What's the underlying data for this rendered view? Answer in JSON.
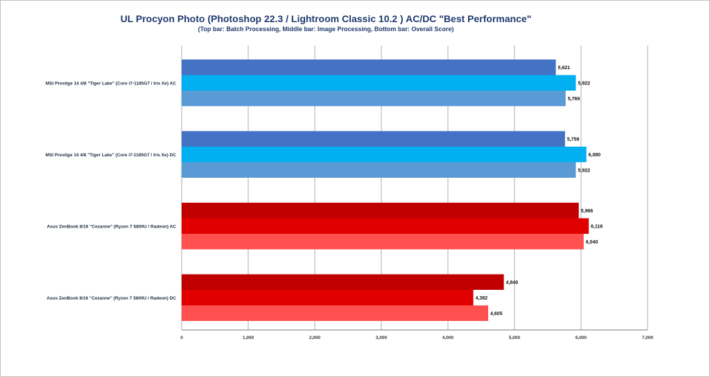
{
  "chart_data": {
    "type": "bar",
    "orientation": "horizontal",
    "title": "UL Procyon Photo (Photoshop 22.3 / Lightroom Classic 10.2 ) AC/DC \"Best Performance\"",
    "subtitle": "(Top bar: Batch Processing, Middle bar: Image Processing, Bottom bar: Overall Score)",
    "xlim": [
      0,
      7000
    ],
    "x_ticks": [
      0,
      1000,
      2000,
      3000,
      4000,
      5000,
      6000,
      7000
    ],
    "x_tick_labels": [
      "0",
      "1,000",
      "2,000",
      "3,000",
      "4,000",
      "5,000",
      "6,000",
      "7,000"
    ],
    "grid": "vertical",
    "categories": [
      {
        "label": "MSI Prestige 14 4/8  \"Tiger Lake\" (Core i7-1185G7 / Iris Xe) AC",
        "values": [
          5621,
          5922,
          5769
        ],
        "value_labels": [
          "5,621",
          "5,922",
          "5,769"
        ],
        "colors": [
          "#4472c4",
          "#00b0f0",
          "#5b9bd5"
        ]
      },
      {
        "label": "MSI Prestige 14 4/8  \"Tiger Lake\" (Core i7-1185G7 / Iris Xe) DC",
        "values": [
          5759,
          6080,
          5922
        ],
        "value_labels": [
          "5,759",
          "6,080",
          "5,922"
        ],
        "colors": [
          "#4472c4",
          "#00b0f0",
          "#5b9bd5"
        ]
      },
      {
        "label": "Asus ZenBook 8/16  \"Cezanne\" (Ryzen 7 5800U / Radeon) AC",
        "values": [
          5966,
          6116,
          6040
        ],
        "value_labels": [
          "5,966",
          "6,116",
          "6,040"
        ],
        "colors": [
          "#c00000",
          "#e00000",
          "#ff5050"
        ]
      },
      {
        "label": "Asus ZenBook 8/16  \"Cezanne\" (Ryzen 7 5800U / Radeon) DC",
        "values": [
          4840,
          4382,
          4605
        ],
        "value_labels": [
          "4,840",
          "4,382",
          "4,605"
        ],
        "colors": [
          "#c00000",
          "#e00000",
          "#ff5050"
        ]
      }
    ]
  }
}
